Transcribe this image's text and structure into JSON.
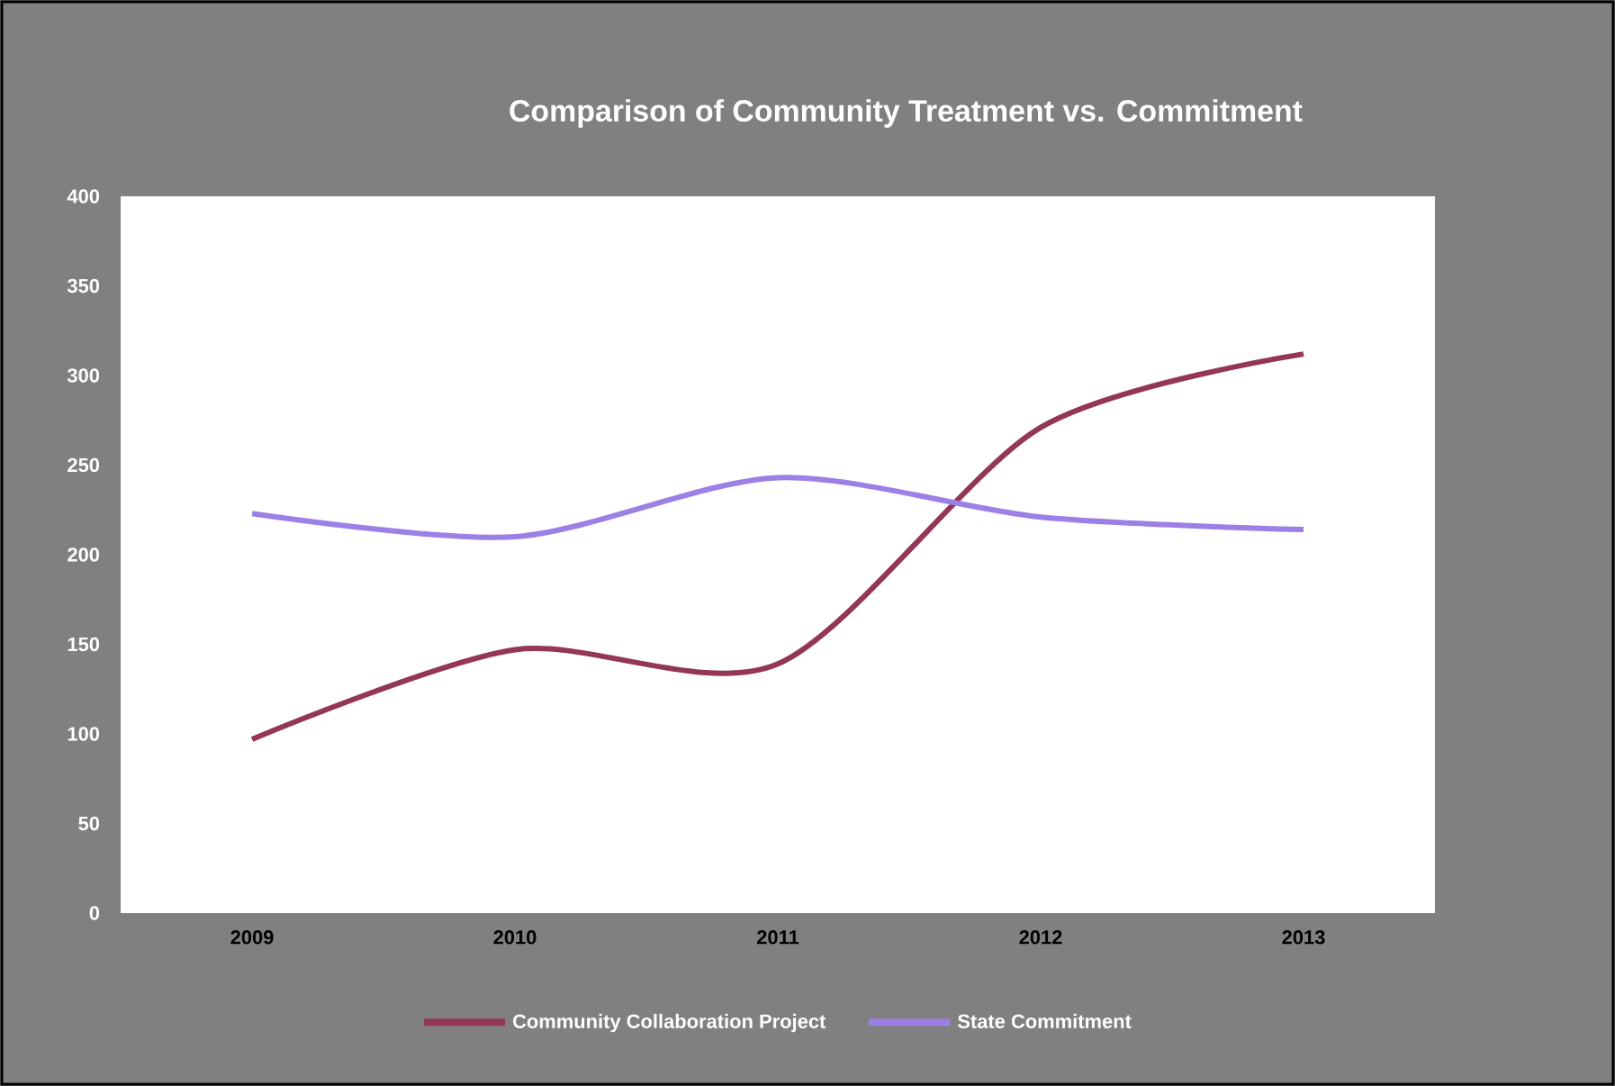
{
  "chart_data": {
    "type": "line",
    "title": "Comparison of Community  Treatment vs. Commitment",
    "categories": [
      "2009",
      "2010",
      "2011",
      "2012",
      "2013"
    ],
    "series": [
      {
        "name": "Community Collaboration Project",
        "color": "#943656",
        "values": [
          97,
          147,
          139,
          271,
          312
        ]
      },
      {
        "name": "State Commitment",
        "color": "#9b80e6",
        "values": [
          223,
          210,
          243,
          221,
          214
        ]
      }
    ],
    "ylim": [
      0,
      400
    ],
    "yticks": [
      0,
      50,
      100,
      150,
      200,
      250,
      300,
      350,
      400
    ],
    "grid": false,
    "legend": "bottom",
    "marker": "none",
    "line_style": "solid"
  }
}
